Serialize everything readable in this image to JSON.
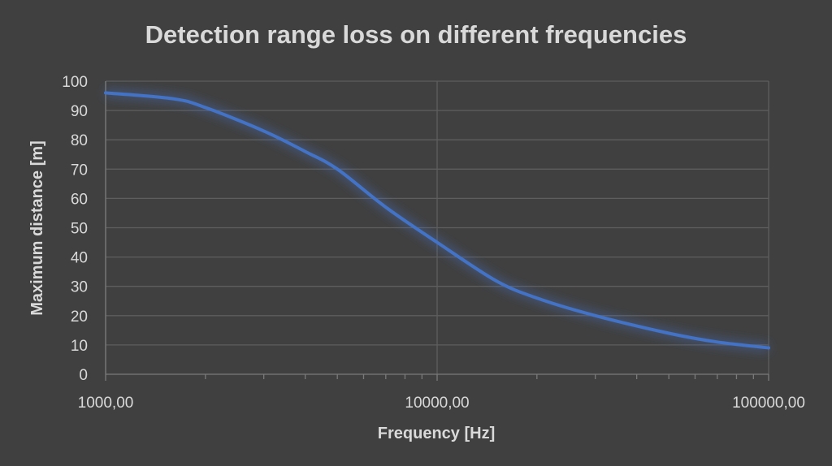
{
  "chart_data": {
    "type": "line",
    "title": "Detection range loss on different frequencies",
    "xlabel": "Frequency [Hz]",
    "ylabel": "Maximum distance [m]",
    "x_scale": "log",
    "xlim": [
      1000,
      100000
    ],
    "ylim": [
      0,
      100
    ],
    "x_ticks": [
      1000,
      10000,
      100000
    ],
    "x_tick_labels": [
      "1000,00",
      "10000,00",
      "100000,00"
    ],
    "y_ticks": [
      0,
      10,
      20,
      30,
      40,
      50,
      60,
      70,
      80,
      90,
      100
    ],
    "y_tick_labels": [
      "0",
      "10",
      "20",
      "30",
      "40",
      "50",
      "60",
      "70",
      "80",
      "90",
      "100"
    ],
    "grid": true,
    "series": [
      {
        "color": "#4472c4",
        "x": [
          1000,
          1600,
          2000,
          3000,
          4000,
          5000,
          7000,
          10000,
          15000,
          20000,
          30000,
          50000,
          70000,
          100000
        ],
        "y": [
          96,
          94,
          91,
          83,
          76,
          70,
          57,
          45,
          32,
          26,
          20,
          14,
          11,
          9
        ]
      }
    ]
  }
}
